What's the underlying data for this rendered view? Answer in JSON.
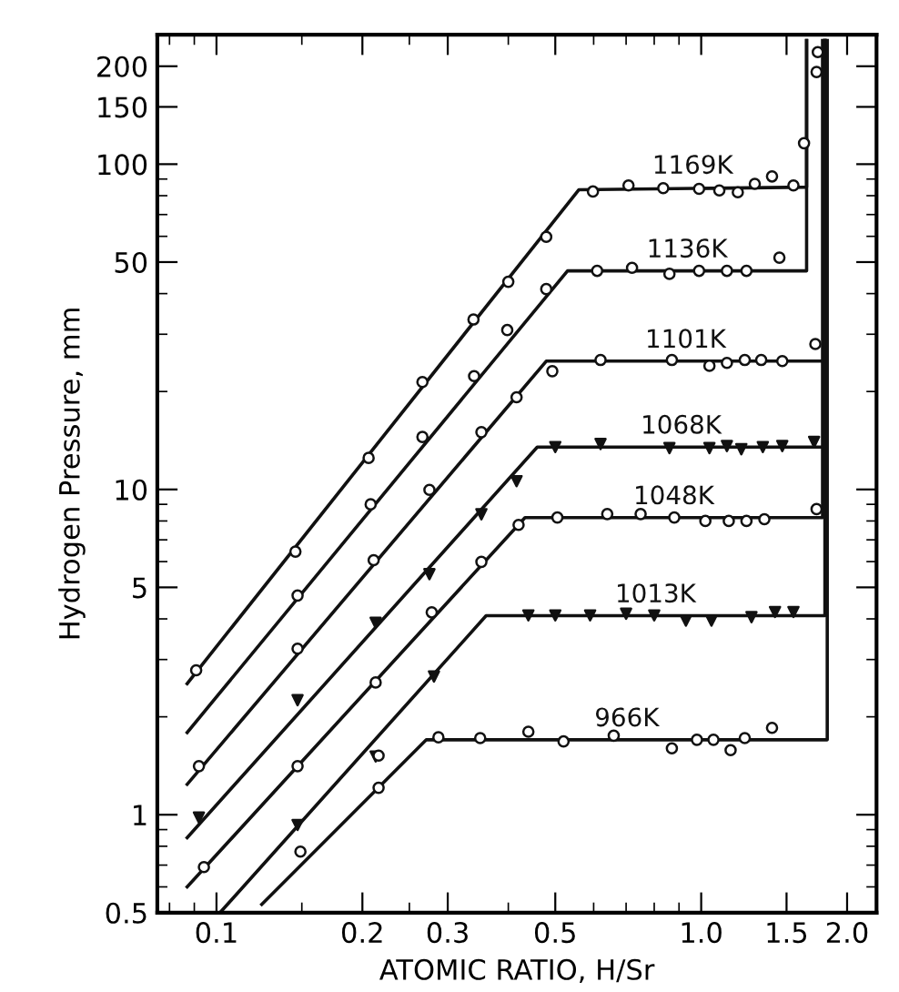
{
  "chart_data": {
    "type": "line",
    "xlabel": "ATOMIC RATIO, H/Sr",
    "ylabel": "Hydrogen Pressure, mm",
    "log": "xy",
    "xlim": [
      0.0755,
      2.3
    ],
    "ylim": [
      0.5,
      250
    ],
    "xticks": [
      0.1,
      0.2,
      0.3,
      0.5,
      {
        "value": 1.0,
        "label": "1.0"
      },
      1.5,
      {
        "value": 2.0,
        "label": "2.0"
      }
    ],
    "yticks": [
      0.5,
      1,
      5,
      10,
      50,
      100,
      150,
      200
    ],
    "grid": false,
    "legend": false,
    "line_style": "solid",
    "series": [
      {
        "name": "1169K",
        "color": "#111111",
        "x": [
          0.087,
          0.559,
          1.65,
          1.65
        ],
        "values": [
          2.53,
          83.4,
          85,
          240
        ]
      },
      {
        "type": "scatter",
        "marker": "circle",
        "color": "#111111",
        "x": [
          0.0908,
          0.1455,
          0.206,
          0.266,
          0.339,
          0.4,
          0.479,
          0.598,
          0.708,
          0.835,
          0.99,
          1.09,
          1.19,
          1.29,
          1.4,
          1.55,
          1.63,
          1.73,
          1.74
        ],
        "values": [
          2.78,
          6.44,
          12.5,
          21.4,
          33.3,
          43.5,
          59.8,
          82.4,
          86,
          84.4,
          84,
          83,
          82,
          87,
          91.7,
          86,
          116,
          192,
          221
        ]
      },
      {
        "name": "1136K",
        "color": "#111111",
        "x": [
          0.087,
          0.53,
          1.65,
          1.65
        ],
        "values": [
          1.79,
          47,
          47,
          240
        ]
      },
      {
        "type": "scatter",
        "marker": "circle",
        "color": "#111111",
        "x": [
          0.147,
          0.208,
          0.266,
          0.34,
          0.398,
          0.479,
          0.61,
          0.72,
          0.86,
          0.99,
          1.13,
          1.24,
          1.45
        ],
        "values": [
          4.72,
          9.0,
          14.5,
          22.3,
          30.9,
          41.3,
          47,
          48,
          46,
          47,
          47,
          47,
          51.6
        ]
      },
      {
        "name": "1101K",
        "color": "#111111",
        "x": [
          0.087,
          0.479,
          1.8,
          1.8
        ],
        "values": [
          1.24,
          24.8,
          24.8,
          240
        ]
      },
      {
        "type": "scatter",
        "marker": "circle",
        "color": "#111111",
        "x": [
          0.092,
          0.147,
          0.211,
          0.275,
          0.352,
          0.416,
          0.493,
          0.62,
          0.87,
          1.04,
          1.13,
          1.23,
          1.33,
          1.47,
          1.72
        ],
        "values": [
          1.41,
          3.24,
          6.06,
          9.97,
          15.0,
          19.2,
          23.1,
          25,
          25,
          24,
          24.5,
          25,
          25,
          24.8,
          28
        ]
      },
      {
        "name": "1068K",
        "color": "#111111",
        "x": [
          0.087,
          0.459,
          1.8,
          1.8
        ],
        "values": [
          0.85,
          13.5,
          13.5,
          240
        ]
      },
      {
        "type": "scatter",
        "marker": "triangle",
        "color": "#111111",
        "x": [
          0.092,
          0.147,
          0.213,
          0.275,
          0.352,
          0.416,
          0.5,
          0.62,
          0.86,
          1.04,
          1.13,
          1.21,
          1.34,
          1.47,
          1.71
        ],
        "values": [
          0.98,
          2.25,
          3.89,
          5.49,
          8.39,
          10.6,
          13.5,
          13.8,
          13.4,
          13.4,
          13.6,
          13.3,
          13.5,
          13.6,
          14
        ]
      },
      {
        "name": "1048K",
        "color": "#111111",
        "x": [
          0.087,
          0.433,
          1.78,
          1.78
        ],
        "values": [
          0.6,
          8.19,
          8.19,
          240
        ]
      },
      {
        "type": "scatter",
        "marker": "circle",
        "color": "#111111",
        "x": [
          0.0942,
          0.147,
          0.213,
          0.278,
          0.352,
          0.42,
          0.505,
          0.64,
          0.75,
          0.88,
          1.02,
          1.14,
          1.24,
          1.35,
          1.73
        ],
        "values": [
          0.69,
          1.41,
          2.55,
          4.19,
          5.99,
          7.78,
          8.2,
          8.4,
          8.4,
          8.2,
          8.0,
          8.0,
          8.0,
          8.1,
          8.7
        ]
      },
      {
        "name": "1013K",
        "color": "#111111",
        "x": [
          0.1017,
          0.36,
          1.8,
          1.8
        ],
        "values": [
          0.5,
          4.09,
          4.09,
          240
        ]
      },
      {
        "type": "scatter",
        "marker": "triangle",
        "color": "#111111",
        "x": [
          0.147,
          0.213,
          0.281,
          0.44,
          0.5,
          0.59,
          0.7,
          0.8,
          0.93,
          1.05,
          1.27,
          1.42,
          1.55
        ],
        "values": [
          0.93,
          1.51,
          2.66,
          4.1,
          4.1,
          4.1,
          4.15,
          4.1,
          3.95,
          3.95,
          4.05,
          4.2,
          4.2
        ]
      },
      {
        "name": "966K",
        "color": "#111111",
        "x": [
          0.124,
          0.271,
          1.82,
          1.82
        ],
        "values": [
          0.53,
          1.7,
          1.7,
          240
        ]
      },
      {
        "type": "scatter",
        "marker": "circle",
        "color": "#111111",
        "x": [
          0.149,
          0.216,
          0.216,
          0.287,
          0.35,
          0.44,
          0.52,
          0.66,
          0.87,
          0.98,
          1.06,
          1.15,
          1.23,
          1.4
        ],
        "values": [
          0.77,
          1.21,
          1.52,
          1.73,
          1.72,
          1.8,
          1.68,
          1.75,
          1.6,
          1.7,
          1.7,
          1.58,
          1.72,
          1.85
        ]
      }
    ]
  }
}
